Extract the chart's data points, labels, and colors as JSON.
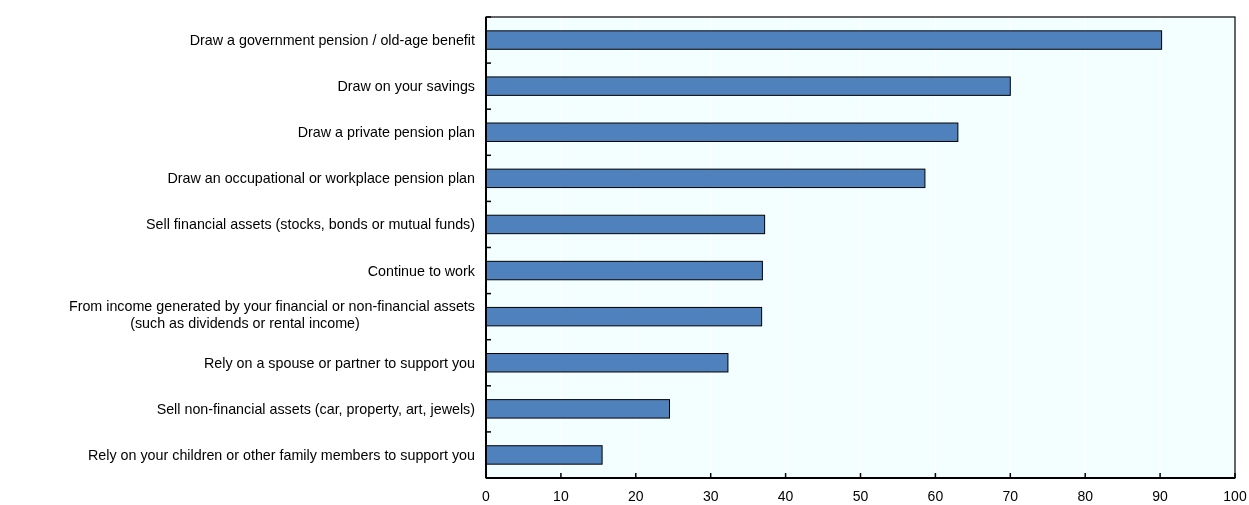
{
  "chart_data": {
    "type": "bar",
    "orientation": "horizontal",
    "categories": [
      "Draw a government pension / old-age benefit",
      "Draw on your savings",
      "Draw a private pension plan",
      "Draw an occupational or workplace pension plan",
      "Sell financial assets (stocks, bonds or mutual funds)",
      "Continue to work",
      "From income generated by your financial or non-financial assets\n(such as dividends or rental income)",
      "Rely on a spouse or partner to support you",
      "Sell non-financial assets (car, property, art, jewels)",
      "Rely on your children or other family members to support you"
    ],
    "values": [
      90.2,
      70.0,
      63.0,
      58.6,
      37.2,
      36.9,
      36.8,
      32.3,
      24.5,
      15.5
    ],
    "color": "#4f81bd",
    "xlim": [
      0,
      100
    ],
    "xticks": [
      0,
      10,
      20,
      30,
      40,
      50,
      60,
      70,
      80,
      90,
      100
    ],
    "grid": "x"
  }
}
